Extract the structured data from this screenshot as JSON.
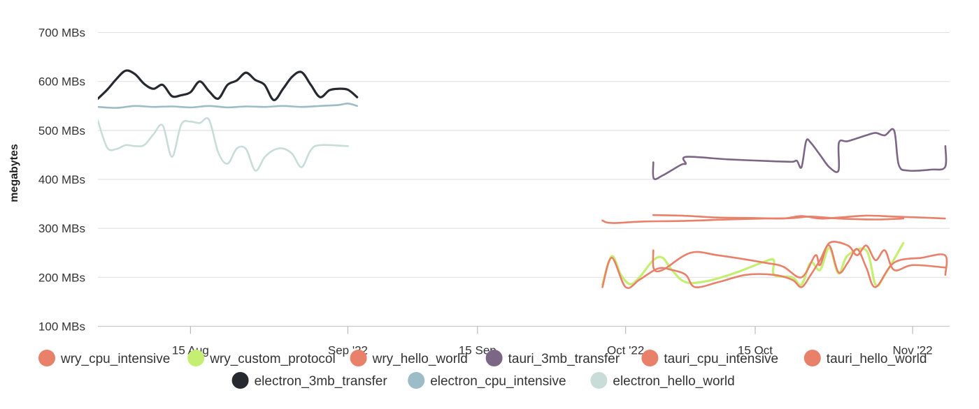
{
  "chart_data": {
    "type": "line",
    "ylabel": "megabytes",
    "y_unit": "MBs",
    "ylim": [
      85,
      735
    ],
    "xlim": [
      "2022-08-05",
      "2022-11-05"
    ],
    "y_ticks": [
      100,
      200,
      300,
      400,
      500,
      600,
      700
    ],
    "y_tick_labels": [
      "100 MBs",
      "200 MBs",
      "300 MBs",
      "400 MBs",
      "500 MBs",
      "600 MBs",
      "700 MBs"
    ],
    "x_ticks": [
      "2022-08-15",
      "2022-09-01",
      "2022-09-15",
      "2022-10-01",
      "2022-10-15",
      "2022-11-01"
    ],
    "x_tick_labels": [
      "15 Aug",
      "Sep '22",
      "15 Sep",
      "Oct '22",
      "15 Oct",
      "Nov '22"
    ],
    "grid": "horizontal",
    "legend_position": "bottom",
    "series": [
      {
        "name": "wry_cpu_intensive",
        "color": "#e8806a",
        "points": [
          [
            "2022-09-28T12:00",
            316
          ],
          [
            "2022-09-29T00:00",
            312
          ],
          [
            "2022-09-30T00:00",
            311
          ],
          [
            "2022-10-03T00:00",
            314
          ],
          [
            "2022-10-07T00:00",
            315
          ],
          [
            "2022-10-12T00:00",
            318
          ],
          [
            "2022-10-16T00:00",
            320
          ],
          [
            "2022-10-19T00:00",
            321
          ],
          [
            "2022-10-21T00:00",
            324
          ],
          [
            "2022-10-24T00:00",
            320
          ],
          [
            "2022-10-28T00:00",
            318
          ],
          [
            "2022-10-31T00:00",
            320
          ]
        ]
      },
      {
        "name": "wry_custom_protocol",
        "color": "#c5ef72",
        "points": [
          [
            "2022-09-28T12:00",
            185
          ],
          [
            "2022-09-29T12:00",
            243
          ],
          [
            "2022-09-30T12:00",
            205
          ],
          [
            "2022-10-01T12:00",
            186
          ],
          [
            "2022-10-02T12:00",
            200
          ],
          [
            "2022-10-04T00:00",
            235
          ],
          [
            "2022-10-05T00:00",
            240
          ],
          [
            "2022-10-06T00:00",
            215
          ],
          [
            "2022-10-07T12:00",
            190
          ],
          [
            "2022-10-10T00:00",
            193
          ],
          [
            "2022-10-13T00:00",
            210
          ],
          [
            "2022-10-16T00:00",
            232
          ],
          [
            "2022-10-17T00:00",
            235
          ],
          [
            "2022-10-17T01:00",
            205
          ],
          [
            "2022-10-19T00:00",
            200
          ],
          [
            "2022-10-20T00:00",
            185
          ],
          [
            "2022-10-21T00:00",
            230
          ],
          [
            "2022-10-22T00:00",
            215
          ],
          [
            "2022-10-23T00:00",
            260
          ],
          [
            "2022-10-24T00:00",
            208
          ],
          [
            "2022-10-25T00:00",
            245
          ],
          [
            "2022-10-27T00:00",
            255
          ],
          [
            "2022-10-28T00:00",
            185
          ],
          [
            "2022-10-29T00:00",
            205
          ],
          [
            "2022-10-31T00:00",
            270
          ]
        ]
      },
      {
        "name": "wry_hello_world",
        "color": "#e8806a",
        "points": [
          [
            "2022-09-28T12:00",
            180
          ],
          [
            "2022-09-29T12:00",
            240
          ],
          [
            "2022-10-01T00:00",
            180
          ],
          [
            "2022-10-02T12:00",
            195
          ],
          [
            "2022-10-04T12:00",
            218
          ],
          [
            "2022-10-06T00:00",
            215
          ],
          [
            "2022-10-07T12:00",
            205
          ],
          [
            "2022-10-08T12:00",
            180
          ],
          [
            "2022-10-11T00:00",
            190
          ],
          [
            "2022-10-14T00:00",
            205
          ],
          [
            "2022-10-17T00:00",
            205
          ],
          [
            "2022-10-19T00:00",
            195
          ],
          [
            "2022-10-20T00:00",
            180
          ],
          [
            "2022-10-21T00:00",
            205
          ],
          [
            "2022-10-22T00:00",
            235
          ],
          [
            "2022-10-23T00:00",
            265
          ],
          [
            "2022-10-24T00:00",
            210
          ],
          [
            "2022-10-25T00:00",
            230
          ],
          [
            "2022-10-26T00:00",
            258
          ],
          [
            "2022-10-27T00:00",
            220
          ],
          [
            "2022-10-28T00:00",
            180
          ],
          [
            "2022-10-30T00:00",
            230
          ],
          [
            "2022-11-02T00:00",
            240
          ],
          [
            "2022-11-04T12:00",
            245
          ],
          [
            "2022-11-04T13:00",
            205
          ]
        ]
      },
      {
        "name": "tauri_3mb_transfer",
        "color": "#7b6686",
        "points": [
          [
            "2022-10-04T00:00",
            435
          ],
          [
            "2022-10-04T01:00",
            402
          ],
          [
            "2022-10-05T00:00",
            408
          ],
          [
            "2022-10-07T00:00",
            430
          ],
          [
            "2022-10-07T12:00",
            432
          ],
          [
            "2022-10-07T13:00",
            446
          ],
          [
            "2022-10-12T00:00",
            441
          ],
          [
            "2022-10-17T00:00",
            437
          ],
          [
            "2022-10-19T00:00",
            436
          ],
          [
            "2022-10-19T12:00",
            438
          ],
          [
            "2022-10-20T00:00",
            425
          ],
          [
            "2022-10-20T12:00",
            478
          ],
          [
            "2022-10-21T00:00",
            475
          ],
          [
            "2022-10-22T00:00",
            450
          ],
          [
            "2022-10-23T00:00",
            425
          ],
          [
            "2022-10-24T00:00",
            418
          ],
          [
            "2022-10-24T01:00",
            475
          ],
          [
            "2022-10-25T00:00",
            478
          ],
          [
            "2022-10-27T00:00",
            490
          ],
          [
            "2022-10-28T00:00",
            495
          ],
          [
            "2022-10-29T00:00",
            490
          ],
          [
            "2022-10-30T00:00",
            500
          ],
          [
            "2022-10-30T12:00",
            430
          ],
          [
            "2022-10-31T12:00",
            418
          ],
          [
            "2022-11-03T00:00",
            420
          ],
          [
            "2022-11-04T12:00",
            425
          ],
          [
            "2022-11-04T13:00",
            468
          ]
        ]
      },
      {
        "name": "tauri_cpu_intensive",
        "color": "#e8806a",
        "points": [
          [
            "2022-10-04T00:00",
            327
          ],
          [
            "2022-10-07T00:00",
            326
          ],
          [
            "2022-10-09T00:00",
            324
          ],
          [
            "2022-10-11T00:00",
            322
          ],
          [
            "2022-10-15T00:00",
            321
          ],
          [
            "2022-10-18T00:00",
            320
          ],
          [
            "2022-10-20T00:00",
            325
          ],
          [
            "2022-10-22T00:00",
            320
          ],
          [
            "2022-10-24T00:00",
            322
          ],
          [
            "2022-10-27T00:00",
            326
          ],
          [
            "2022-10-30T00:00",
            324
          ],
          [
            "2022-11-02T00:00",
            322
          ],
          [
            "2022-11-04T12:00",
            320
          ]
        ]
      },
      {
        "name": "tauri_hello_world",
        "color": "#e8806a",
        "points": [
          [
            "2022-10-04T00:00",
            255
          ],
          [
            "2022-10-04T01:00",
            218
          ],
          [
            "2022-10-05T00:00",
            215
          ],
          [
            "2022-10-08T00:00",
            250
          ],
          [
            "2022-10-11T00:00",
            245
          ],
          [
            "2022-10-16T00:00",
            230
          ],
          [
            "2022-10-18T00:00",
            222
          ],
          [
            "2022-10-20T00:00",
            200
          ],
          [
            "2022-10-21T12:00",
            245
          ],
          [
            "2022-10-22T00:00",
            225
          ],
          [
            "2022-10-23T00:00",
            270
          ],
          [
            "2022-10-25T00:00",
            265
          ],
          [
            "2022-10-26T00:00",
            245
          ],
          [
            "2022-10-27T00:00",
            265
          ],
          [
            "2022-10-28T00:00",
            235
          ],
          [
            "2022-10-29T00:00",
            255
          ],
          [
            "2022-10-30T00:00",
            215
          ],
          [
            "2022-11-01T00:00",
            225
          ],
          [
            "2022-11-04T12:00",
            220
          ]
        ]
      },
      {
        "name": "electron_3mb_transfer",
        "color": "#262a30",
        "points": [
          [
            "2022-08-05T00:00",
            565
          ],
          [
            "2022-08-06T00:00",
            583
          ],
          [
            "2022-08-07T00:00",
            605
          ],
          [
            "2022-08-08T00:00",
            622
          ],
          [
            "2022-08-09T00:00",
            615
          ],
          [
            "2022-08-10T00:00",
            595
          ],
          [
            "2022-08-11T00:00",
            585
          ],
          [
            "2022-08-12T00:00",
            593
          ],
          [
            "2022-08-13T00:00",
            570
          ],
          [
            "2022-08-14T00:00",
            572
          ],
          [
            "2022-08-15T00:00",
            578
          ],
          [
            "2022-08-16T00:00",
            600
          ],
          [
            "2022-08-17T00:00",
            580
          ],
          [
            "2022-08-18T00:00",
            565
          ],
          [
            "2022-08-19T00:00",
            593
          ],
          [
            "2022-08-20T00:00",
            602
          ],
          [
            "2022-08-21T00:00",
            618
          ],
          [
            "2022-08-22T00:00",
            603
          ],
          [
            "2022-08-23T00:00",
            593
          ],
          [
            "2022-08-24T00:00",
            562
          ],
          [
            "2022-08-25T00:00",
            585
          ],
          [
            "2022-08-26T00:00",
            610
          ],
          [
            "2022-08-27T00:00",
            619
          ],
          [
            "2022-08-28T00:00",
            593
          ],
          [
            "2022-08-29T00:00",
            568
          ],
          [
            "2022-08-30T00:00",
            582
          ],
          [
            "2022-08-31T00:00",
            585
          ],
          [
            "2022-09-01T00:00",
            583
          ],
          [
            "2022-09-02T00:00",
            568
          ]
        ]
      },
      {
        "name": "electron_cpu_intensive",
        "color": "#9cbcc7",
        "points": [
          [
            "2022-08-05T00:00",
            548
          ],
          [
            "2022-08-07T00:00",
            546
          ],
          [
            "2022-08-09T00:00",
            550
          ],
          [
            "2022-08-11T00:00",
            548
          ],
          [
            "2022-08-13T00:00",
            549
          ],
          [
            "2022-08-15T00:00",
            547
          ],
          [
            "2022-08-17T00:00",
            550
          ],
          [
            "2022-08-19T00:00",
            547
          ],
          [
            "2022-08-21T00:00",
            549
          ],
          [
            "2022-08-23T00:00",
            548
          ],
          [
            "2022-08-25T00:00",
            550
          ],
          [
            "2022-08-27T00:00",
            548
          ],
          [
            "2022-08-29T00:00",
            550
          ],
          [
            "2022-08-31T00:00",
            552
          ],
          [
            "2022-09-01T00:00",
            555
          ],
          [
            "2022-09-02T00:00",
            550
          ]
        ]
      },
      {
        "name": "electron_hello_world",
        "color": "#c8dcd8",
        "points": [
          [
            "2022-08-05T00:00",
            520
          ],
          [
            "2022-08-06T00:00",
            465
          ],
          [
            "2022-08-07T00:00",
            462
          ],
          [
            "2022-08-08T00:00",
            470
          ],
          [
            "2022-08-09T00:00",
            468
          ],
          [
            "2022-08-10T00:00",
            470
          ],
          [
            "2022-08-11T00:00",
            492
          ],
          [
            "2022-08-12T00:00",
            510
          ],
          [
            "2022-08-13T00:00",
            446
          ],
          [
            "2022-08-14T00:00",
            512
          ],
          [
            "2022-08-15T00:00",
            518
          ],
          [
            "2022-08-16T00:00",
            515
          ],
          [
            "2022-08-17T00:00",
            522
          ],
          [
            "2022-08-18T00:00",
            455
          ],
          [
            "2022-08-19T00:00",
            432
          ],
          [
            "2022-08-20T00:00",
            463
          ],
          [
            "2022-08-21T00:00",
            462
          ],
          [
            "2022-08-22T00:00",
            418
          ],
          [
            "2022-08-23T00:00",
            445
          ],
          [
            "2022-08-24T00:00",
            460
          ],
          [
            "2022-08-25T00:00",
            463
          ],
          [
            "2022-08-26T00:00",
            452
          ],
          [
            "2022-08-27T00:00",
            425
          ],
          [
            "2022-08-28T00:00",
            460
          ],
          [
            "2022-08-29T00:00",
            470
          ],
          [
            "2022-09-01T00:00",
            468
          ]
        ]
      }
    ]
  }
}
